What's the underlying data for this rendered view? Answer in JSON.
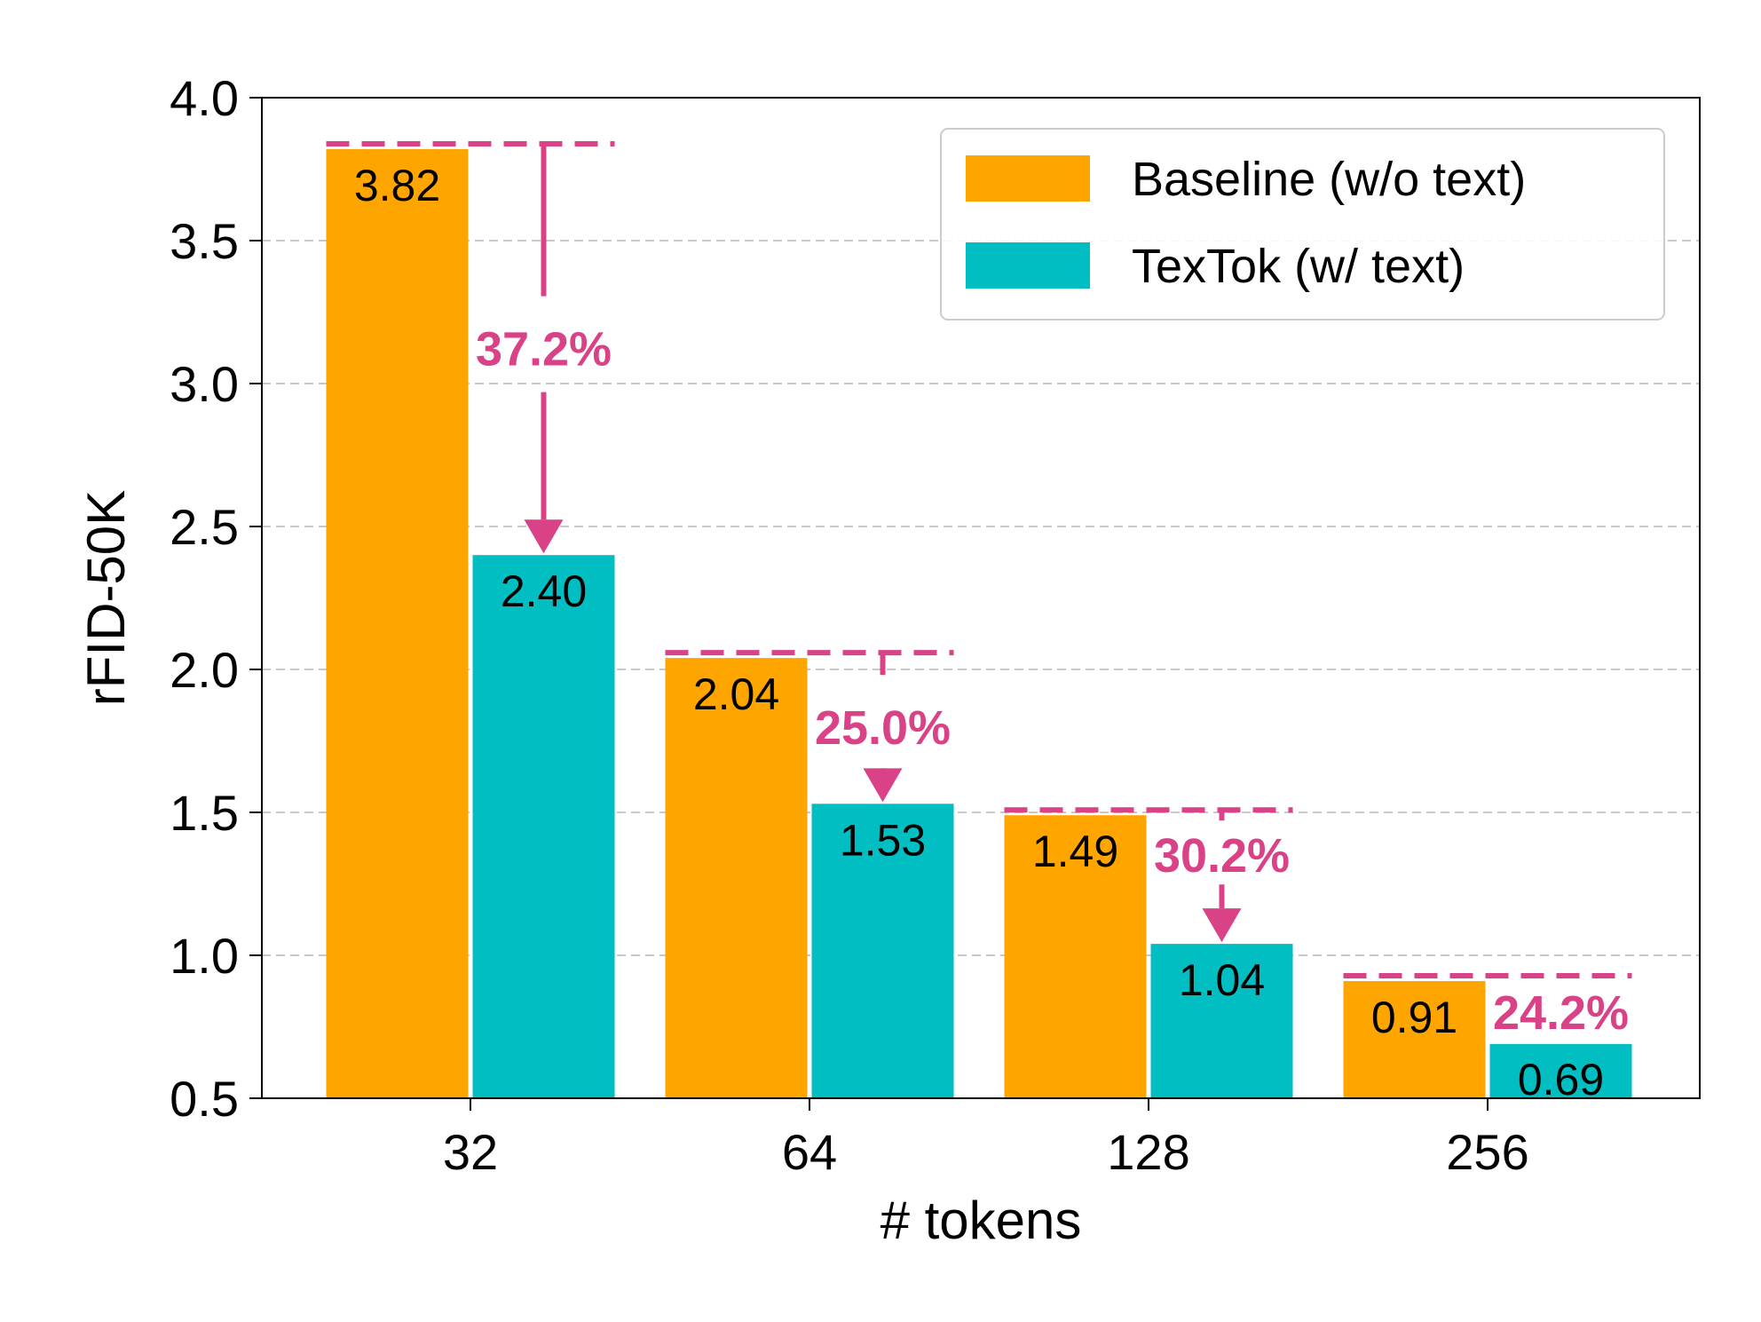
{
  "chart_data": {
    "type": "bar",
    "title": "",
    "xlabel": "# tokens",
    "ylabel": "rFID-50K",
    "categories": [
      "32",
      "64",
      "128",
      "256"
    ],
    "ylim": [
      0.5,
      4.0
    ],
    "yticks": [
      "0.5",
      "1.0",
      "1.5",
      "2.0",
      "2.5",
      "3.0",
      "3.5",
      "4.0"
    ],
    "grid": "y-dashed",
    "legend_position": "top-right",
    "series": [
      {
        "name": "Baseline (w/o text)",
        "color": "#FFA500",
        "values": [
          3.82,
          2.04,
          1.49,
          0.91
        ],
        "labels": [
          "3.82",
          "2.04",
          "1.49",
          "0.91"
        ]
      },
      {
        "name": "TexTok (w/ text)",
        "color": "#00BEC2",
        "values": [
          2.4,
          1.53,
          1.04,
          0.69
        ],
        "labels": [
          "2.40",
          "1.53",
          "1.04",
          "0.69"
        ]
      }
    ],
    "annotations": {
      "color": "#D94287",
      "reductions": [
        "37.2%",
        "25.0%",
        "30.2%",
        "24.2%"
      ]
    }
  }
}
